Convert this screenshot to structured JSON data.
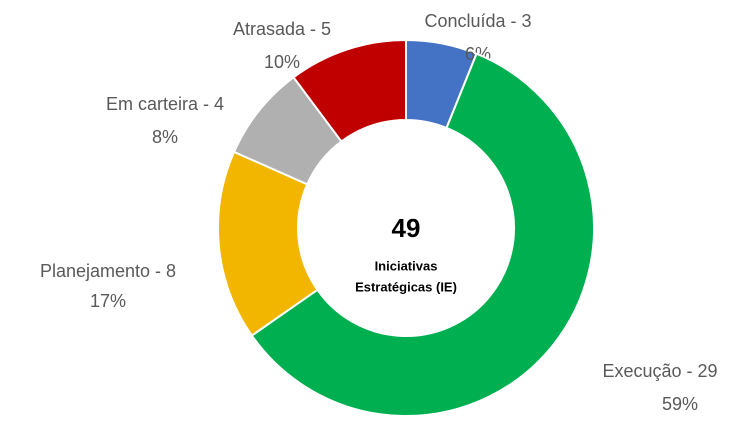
{
  "chart_data": {
    "type": "pie",
    "value_labels": [
      "Concluída - 3",
      "Execução - 29",
      "Planejamento - 8",
      "Em carteira - 4",
      "Atrasada - 5"
    ],
    "values": [
      3,
      29,
      8,
      4,
      5
    ],
    "percents": [
      6,
      59,
      17,
      8,
      10
    ],
    "percent_labels": [
      "6%",
      "59%",
      "17%",
      "8%",
      "10%"
    ],
    "colors": [
      "#4472c4",
      "#00b050",
      "#f2b600",
      "#b0b0b0",
      "#c00000"
    ],
    "center_value": 49,
    "center_label": [
      "Iniciativas",
      "Estratégicas (IE)"
    ]
  }
}
